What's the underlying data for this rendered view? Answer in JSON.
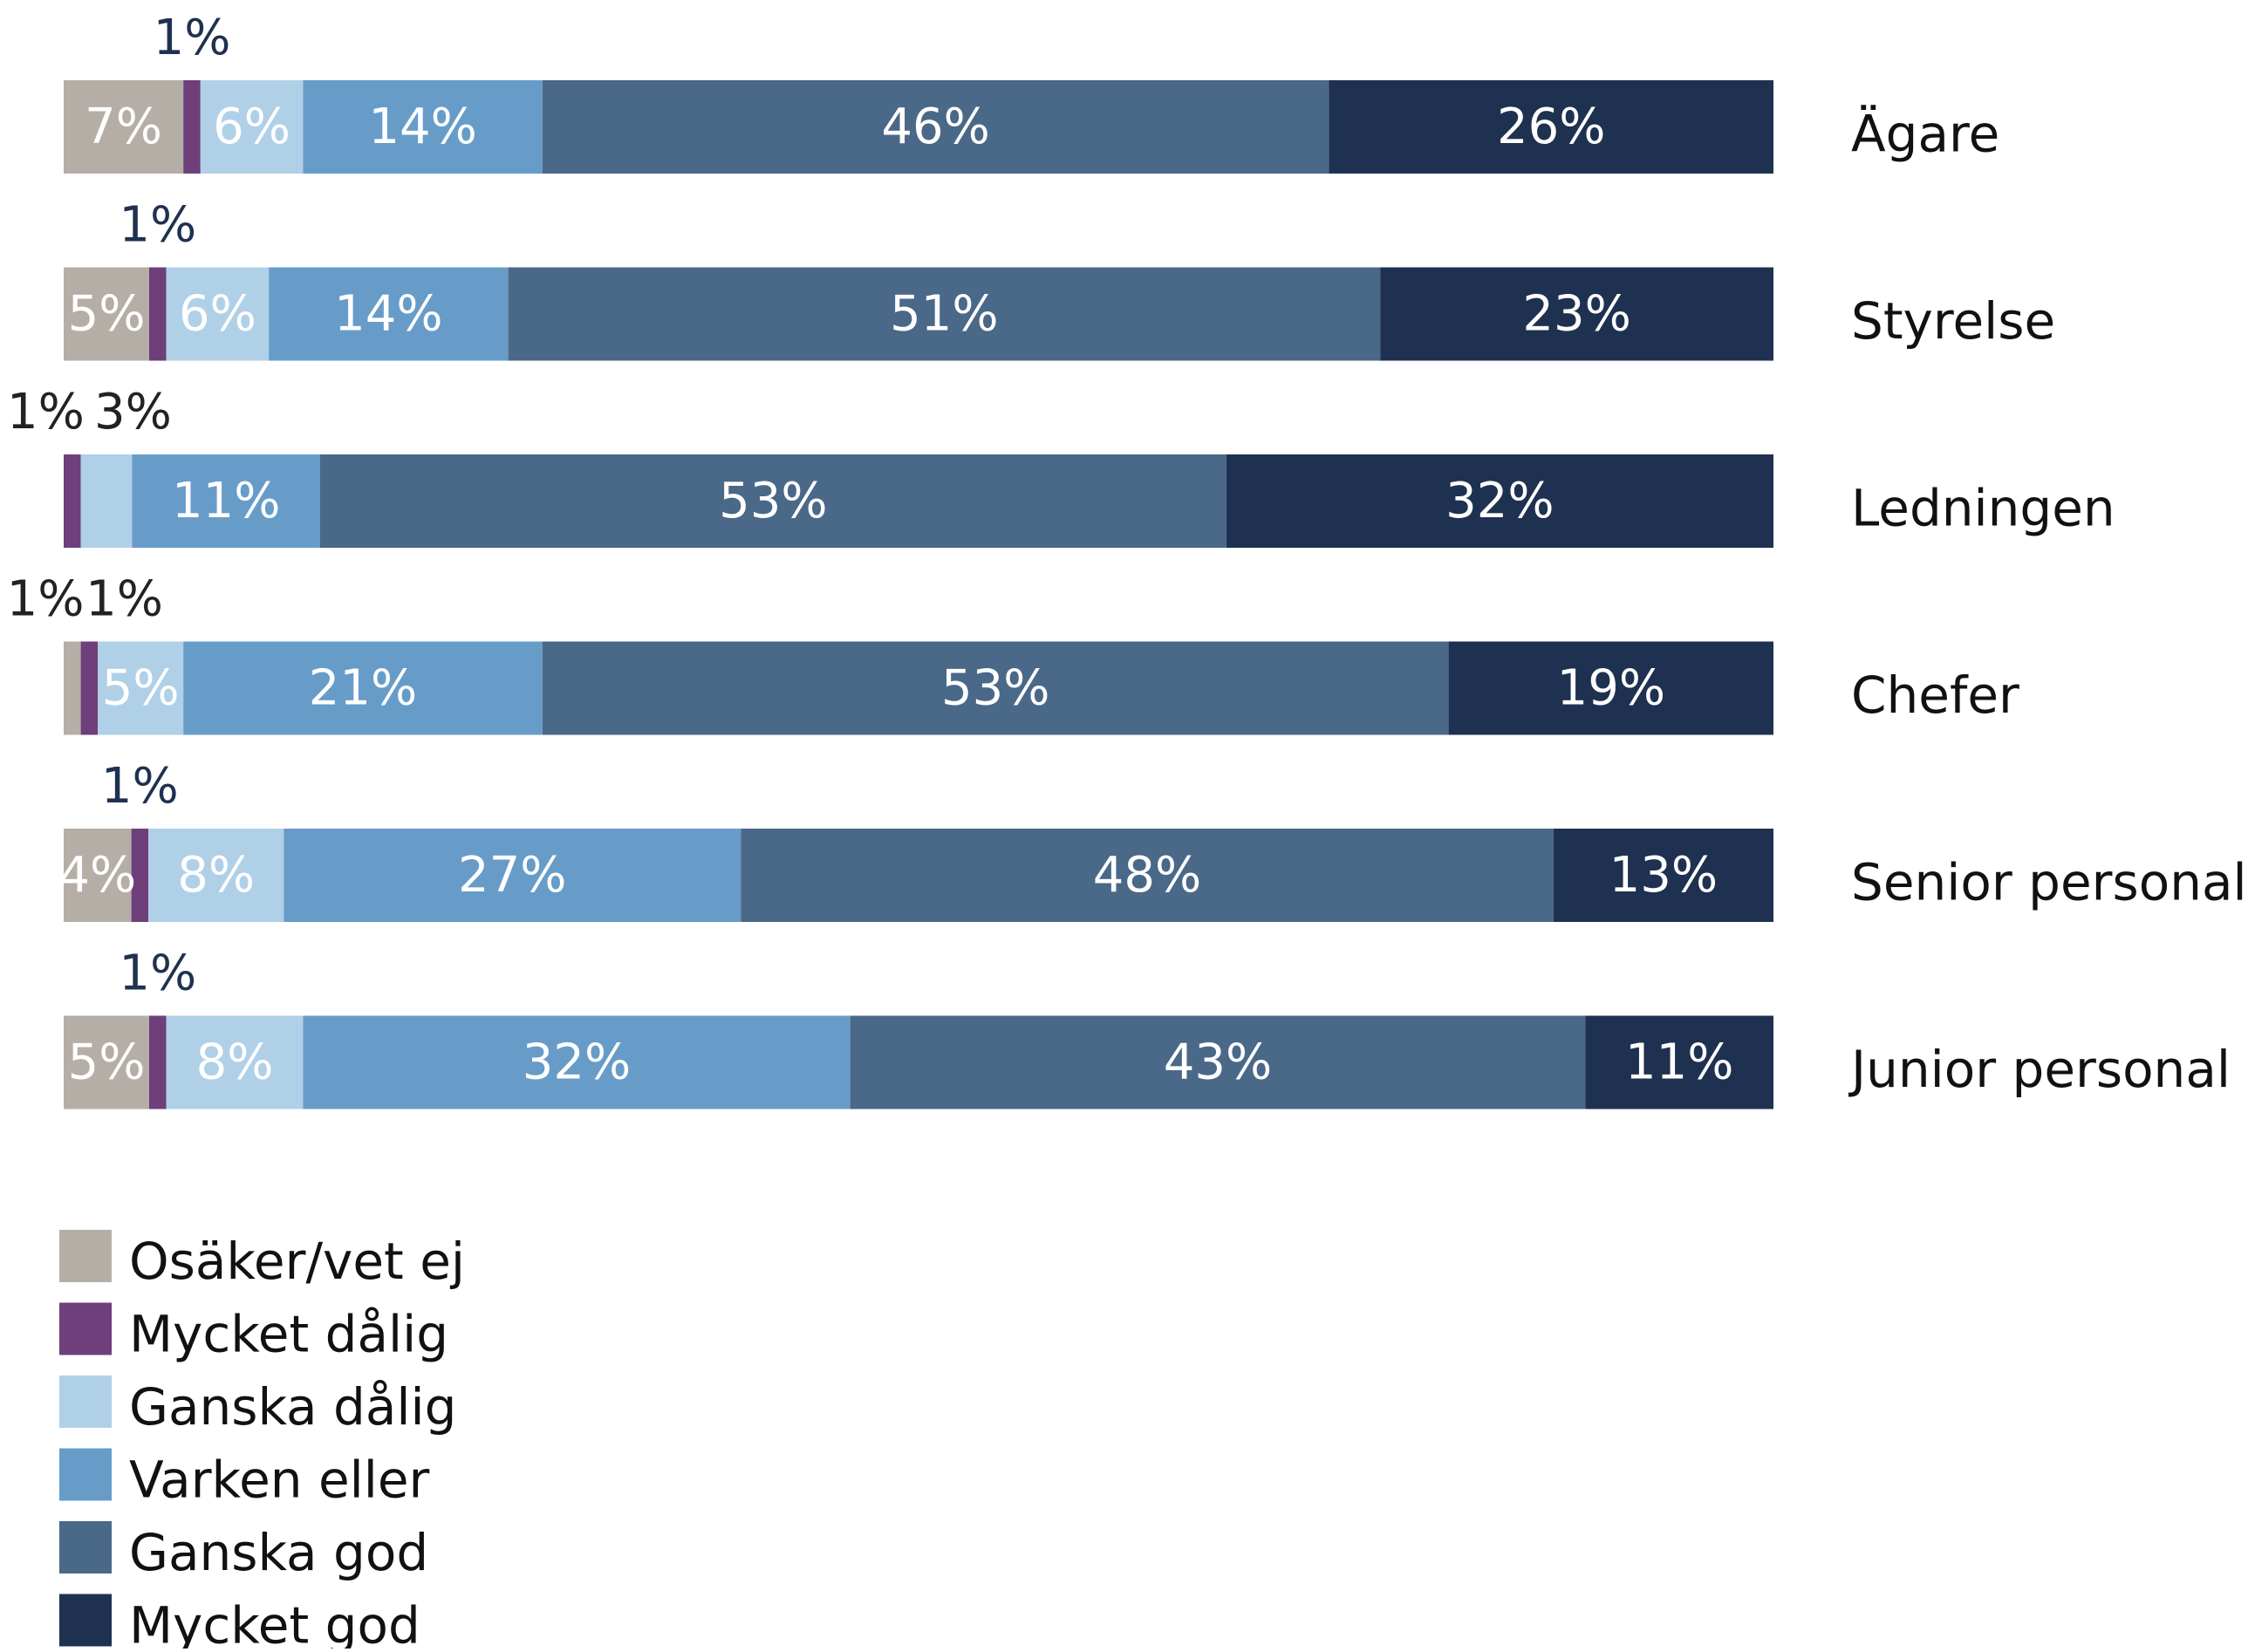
{
  "chart_data": {
    "type": "bar",
    "orientation": "horizontal",
    "stacked": true,
    "percent_suffix": "%",
    "categories": [
      "Ägare",
      "Styrelse",
      "Ledningen",
      "Chefer",
      "Senior personal",
      "Junior personal"
    ],
    "series": [
      {
        "name": "Osäker/vet ej",
        "color": "#b5aea7",
        "values": [
          7,
          5,
          0,
          1,
          4,
          5
        ]
      },
      {
        "name": "Mycket dålig",
        "color": "#6e3f7a",
        "values": [
          1,
          1,
          1,
          1,
          1,
          1
        ]
      },
      {
        "name": "Ganska dålig",
        "color": "#b0d0e8",
        "values": [
          6,
          6,
          3,
          5,
          8,
          8
        ]
      },
      {
        "name": "Varken eller",
        "color": "#679cc9",
        "values": [
          14,
          14,
          11,
          21,
          27,
          32
        ]
      },
      {
        "name": "Ganska god",
        "color": "#4a6888",
        "values": [
          46,
          51,
          53,
          53,
          48,
          43
        ]
      },
      {
        "name": "Mycket god",
        "color": "#1f3150",
        "values": [
          26,
          23,
          32,
          19,
          13,
          11
        ]
      }
    ],
    "xlim": [
      0,
      100
    ],
    "grid": false,
    "legend": {
      "placement": "bottom-left"
    },
    "colors": {
      "inside_label": "#ffffff",
      "outside_label_dark": "#1f3150",
      "outside_label_black": "#222222",
      "category_label": "#111111",
      "legend_text": "#111111"
    }
  }
}
